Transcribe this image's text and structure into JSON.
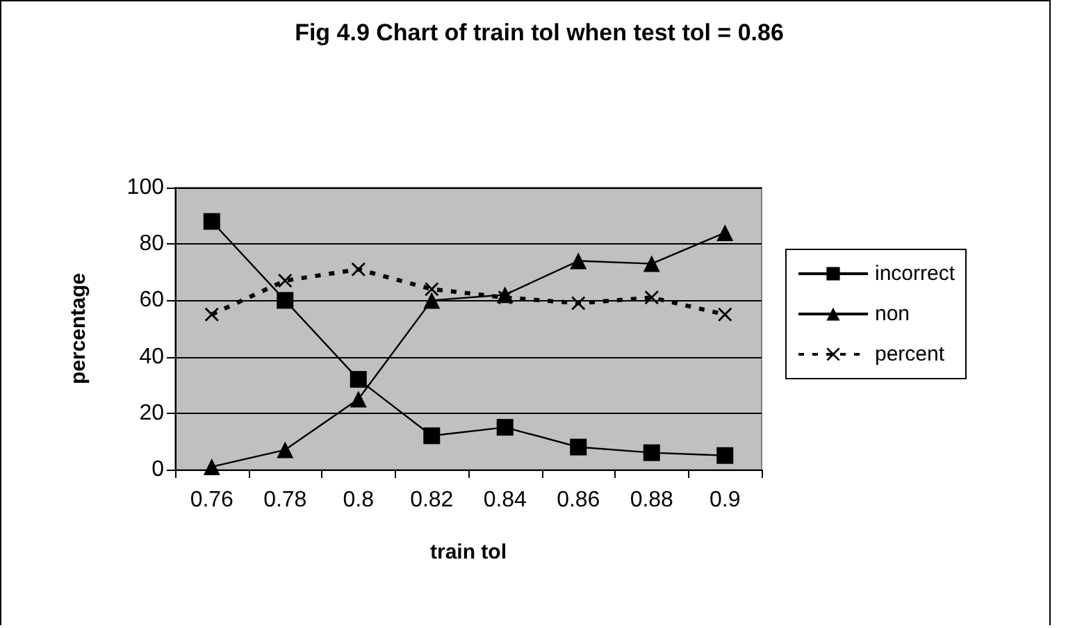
{
  "chart_data": {
    "type": "line",
    "title": "Fig 4.9 Chart of train tol when test tol = 0.86",
    "xlabel": "train tol",
    "ylabel": "percentage",
    "categories": [
      "0.76",
      "0.78",
      "0.8",
      "0.82",
      "0.84",
      "0.86",
      "0.88",
      "0.9"
    ],
    "series": [
      {
        "name": "incorrect",
        "color": "#000000",
        "marker": "square",
        "line_style": "solid",
        "values": [
          88,
          60,
          32,
          12,
          15,
          8,
          6,
          5
        ]
      },
      {
        "name": "non",
        "color": "#000000",
        "marker": "triangle",
        "line_style": "solid",
        "values": [
          1,
          7,
          25,
          60,
          62,
          74,
          73,
          84
        ]
      },
      {
        "name": "percent",
        "color": "#000000",
        "marker": "cross",
        "line_style": "dashed",
        "values": [
          55,
          67,
          71,
          64,
          61,
          59,
          61,
          55
        ]
      }
    ],
    "ylim": [
      0,
      100
    ],
    "yticks": [
      0,
      20,
      40,
      60,
      80,
      100
    ],
    "grid": "y",
    "legend": "right"
  }
}
